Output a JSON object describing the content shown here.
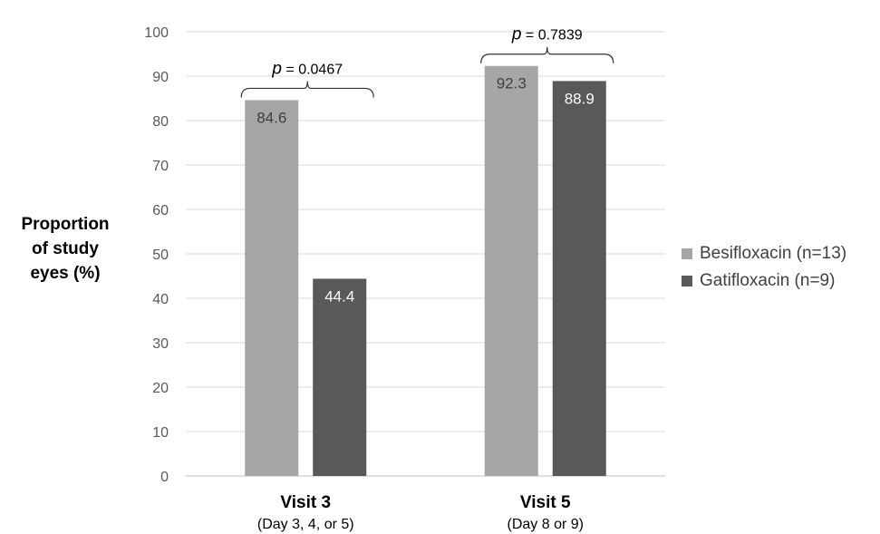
{
  "chart_data": {
    "type": "bar",
    "ylabel_lines": [
      "Proportion",
      "of study",
      "eyes (%)"
    ],
    "ylim": [
      0,
      100
    ],
    "yticks": [
      0,
      10,
      20,
      30,
      40,
      50,
      60,
      70,
      80,
      90,
      100
    ],
    "grid": true,
    "legend_position": "right",
    "categories": [
      {
        "label": "Visit 3",
        "sublabel": "(Day 3, 4, or 5)"
      },
      {
        "label": "Visit 5",
        "sublabel": "(Day 8 or 9)"
      }
    ],
    "series": [
      {
        "name": "Besifloxacin (n=13)",
        "color": "#a6a6a6",
        "label_color": "#404040",
        "values": [
          84.6,
          92.3
        ],
        "value_labels": [
          "84.6",
          "92.3"
        ]
      },
      {
        "name": "Gatifloxacin (n=9)",
        "color": "#595959",
        "label_color": "#ffffff",
        "values": [
          44.4,
          88.9
        ],
        "value_labels": [
          "44.4",
          "88.9"
        ]
      }
    ],
    "annotations": [
      {
        "category_index": 0,
        "p_symbol": "p",
        "p_text": " = 0.0467"
      },
      {
        "category_index": 1,
        "p_symbol": "p",
        "p_text": " = 0.7839"
      }
    ]
  }
}
